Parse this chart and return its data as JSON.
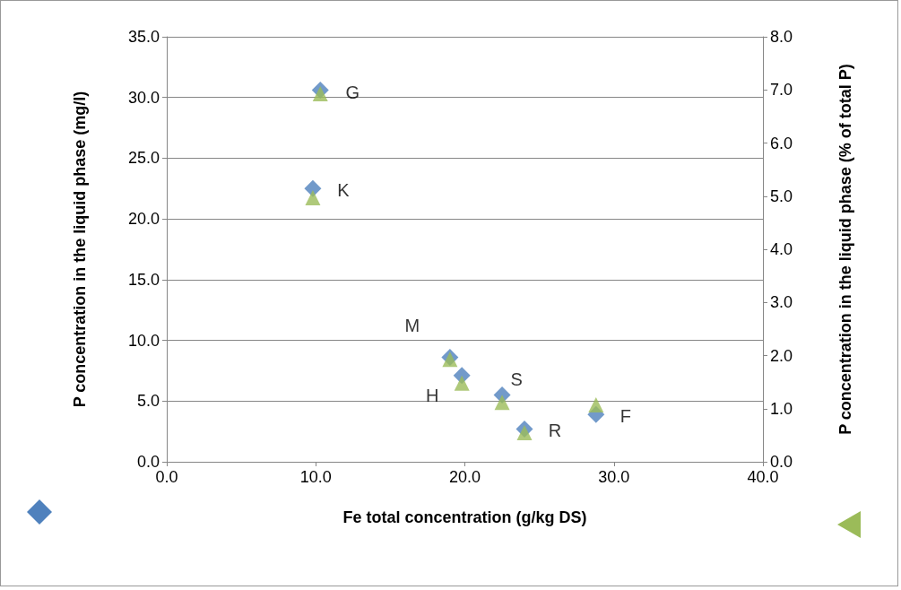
{
  "chart_data": {
    "type": "scatter",
    "xlabel": "Fe total concentration (g/kg DS)",
    "ylabel": "P concentration in the liquid phase (mg/l)",
    "y2label": "P concentration in the liquid phase (% of total P)",
    "x": [
      10.3,
      9.8,
      19.0,
      19.8,
      22.5,
      24.0,
      28.8
    ],
    "series": [
      {
        "color": "#4f81bd",
        "marker": "diamond",
        "values": [
          30.6,
          22.5,
          8.6,
          7.1,
          5.5,
          2.7,
          3.9
        ]
      },
      {
        "color": "#9bbb59",
        "marker": "triangle",
        "axis": "y2",
        "values": [
          6.93,
          4.97,
          1.93,
          1.48,
          1.12,
          0.55,
          1.07
        ]
      }
    ],
    "xlim": [
      0,
      40
    ],
    "xticks": [
      {
        "value": 0,
        "label": "0.0"
      },
      {
        "value": 10,
        "label": "10.0"
      },
      {
        "value": 20,
        "label": "20.0"
      },
      {
        "value": 30,
        "label": "30.0"
      },
      {
        "value": 40,
        "label": "40.0"
      }
    ],
    "ylim": [
      0,
      35
    ],
    "yticks": [
      {
        "value": 0,
        "label": "0.0"
      },
      {
        "value": 5,
        "label": "5.0"
      },
      {
        "value": 10,
        "label": "10.0"
      },
      {
        "value": 15,
        "label": "15.0"
      },
      {
        "value": 20,
        "label": "20.0"
      },
      {
        "value": 25,
        "label": "25.0"
      },
      {
        "value": 30,
        "label": "30.0"
      },
      {
        "value": 35,
        "label": "35.0"
      }
    ],
    "y2lim": [
      0,
      8
    ],
    "y2ticks": [
      {
        "value": 0,
        "label": "0.0"
      },
      {
        "value": 1,
        "label": "1.0"
      },
      {
        "value": 2,
        "label": "2.0"
      },
      {
        "value": 3,
        "label": "3.0"
      },
      {
        "value": 4,
        "label": "4.0"
      },
      {
        "value": 5,
        "label": "5.0"
      },
      {
        "value": 6,
        "label": "6.0"
      },
      {
        "value": 7,
        "label": "7.0"
      },
      {
        "value": 8,
        "label": "8.0"
      }
    ],
    "annotations": [
      {
        "text": "G",
        "x": 10.3,
        "y": 30.6
      },
      {
        "text": "K",
        "x": 9.8,
        "y": 22.5
      },
      {
        "text": "M",
        "x": 19.0,
        "y": 8.6
      },
      {
        "text": "H",
        "x": 19.8,
        "y": 7.1
      },
      {
        "text": "S",
        "x": 22.5,
        "y": 5.5
      },
      {
        "text": "R",
        "x": 24.0,
        "y": 2.7
      },
      {
        "text": "F",
        "x": 28.8,
        "y": 3.9
      }
    ],
    "grid": "y"
  }
}
